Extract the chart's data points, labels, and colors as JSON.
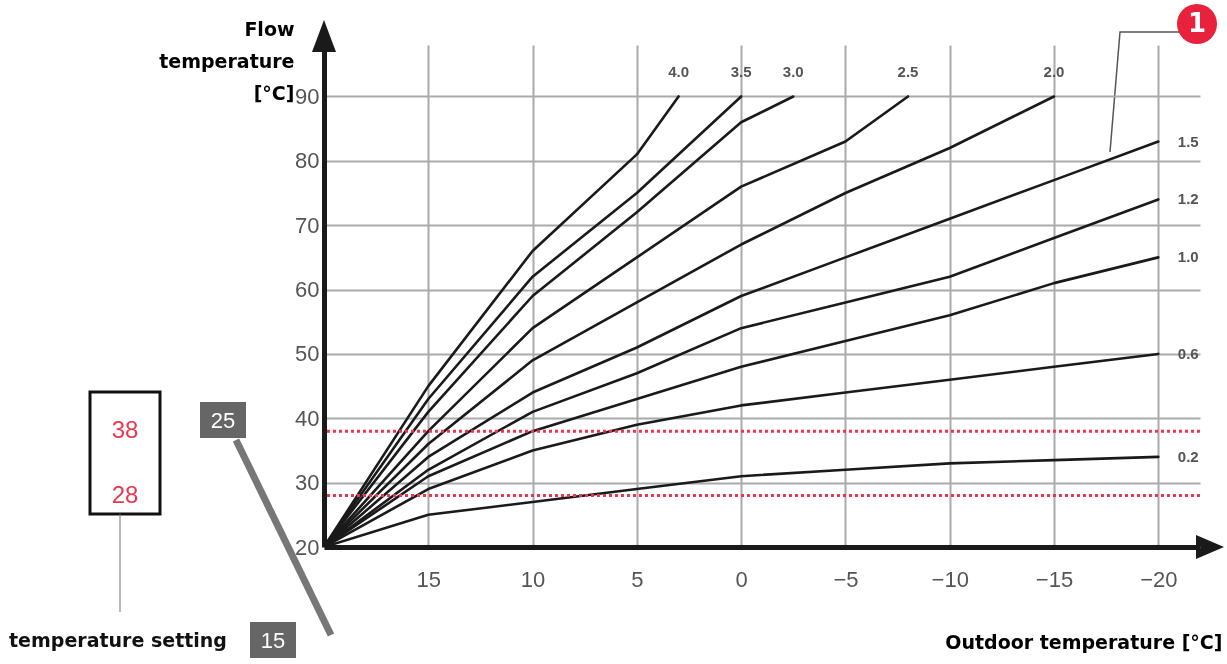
{
  "chart_data": {
    "type": "line",
    "xlabel": "Outdoor temperature [°C]",
    "ylabel": "Flow temperature [°C]",
    "xlim": [
      20,
      -22
    ],
    "xticks": [
      15,
      10,
      5,
      0,
      -5,
      -10,
      -15,
      -20
    ],
    "ylim": [
      20,
      98
    ],
    "yticks": [
      20,
      30,
      40,
      50,
      60,
      70,
      80,
      90
    ],
    "grid": true,
    "line_style": "solid",
    "series": [
      {
        "name": "4.0",
        "color": "#1a1a1a",
        "x": [
          20,
          15,
          10,
          5,
          3
        ],
        "values": [
          20,
          45,
          66,
          81,
          90
        ]
      },
      {
        "name": "3.5",
        "color": "#1a1a1a",
        "x": [
          20,
          15,
          10,
          5,
          0
        ],
        "values": [
          20,
          43,
          62,
          75,
          90
        ]
      },
      {
        "name": "3.0",
        "color": "#1a1a1a",
        "x": [
          20,
          15,
          10,
          5,
          0,
          -2.5
        ],
        "values": [
          20,
          41,
          59,
          72,
          86,
          90
        ]
      },
      {
        "name": "2.5",
        "color": "#1a1a1a",
        "x": [
          20,
          15,
          10,
          5,
          0,
          -5,
          -8
        ],
        "values": [
          20,
          38,
          54,
          65,
          76,
          83,
          90
        ]
      },
      {
        "name": "2.0",
        "color": "#1a1a1a",
        "x": [
          20,
          15,
          10,
          5,
          0,
          -5,
          -10,
          -15
        ],
        "values": [
          20,
          36,
          49,
          58,
          67,
          75,
          82,
          90
        ]
      },
      {
        "name": "1.5",
        "color": "#1a1a1a",
        "x": [
          20,
          15,
          10,
          5,
          0,
          -5,
          -10,
          -15,
          -20
        ],
        "values": [
          20,
          34,
          44,
          51,
          59,
          65,
          71,
          77,
          83
        ]
      },
      {
        "name": "1.2",
        "color": "#1a1a1a",
        "x": [
          20,
          15,
          10,
          5,
          0,
          -5,
          -10,
          -15,
          -20
        ],
        "values": [
          20,
          32,
          41,
          47,
          54,
          58,
          62,
          68,
          74
        ]
      },
      {
        "name": "1.0",
        "color": "#1a1a1a",
        "x": [
          20,
          15,
          10,
          5,
          0,
          -5,
          -10,
          -15,
          -20
        ],
        "values": [
          20,
          31,
          38,
          43,
          48,
          52,
          56,
          61,
          65
        ]
      },
      {
        "name": "0.6",
        "color": "#1a1a1a",
        "x": [
          20,
          15,
          10,
          5,
          0,
          -5,
          -10,
          -15,
          -20
        ],
        "values": [
          20,
          29,
          35,
          39,
          42,
          44,
          46,
          48,
          50
        ]
      },
      {
        "name": "0.2",
        "color": "#1a1a1a",
        "x": [
          20,
          15,
          10,
          5,
          0,
          -5,
          -10,
          -15,
          -20
        ],
        "values": [
          20,
          25,
          27,
          29,
          31,
          32,
          33,
          33.5,
          34
        ]
      }
    ],
    "ref_lines": [
      {
        "axis": "y",
        "value": 38,
        "label": "38",
        "color": "#e8384f",
        "line_style": "dotted"
      },
      {
        "axis": "y",
        "value": 28,
        "label": "28",
        "color": "#e8384f",
        "line_style": "dotted"
      }
    ],
    "annotations": [
      "1",
      "25",
      "15",
      "temperature setting"
    ]
  }
}
